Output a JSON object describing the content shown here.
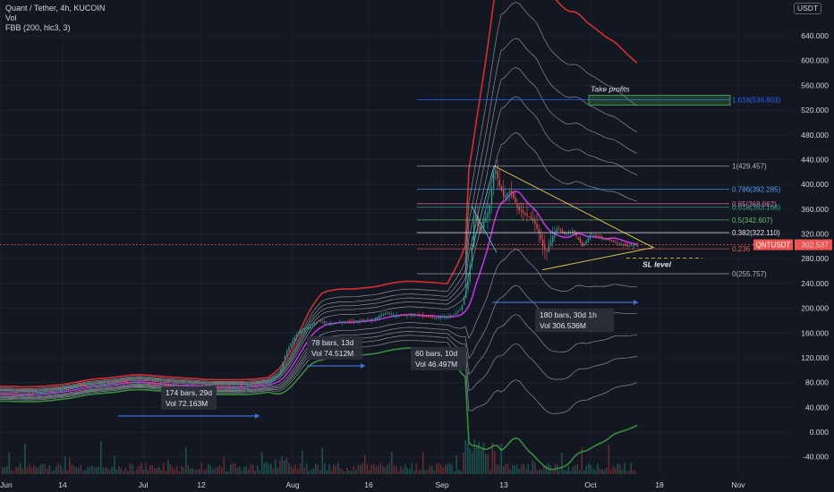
{
  "header": {
    "symbol_line": "Quant / Tether, 4h, KUCOIN",
    "indicator_vol": "Vol",
    "indicator_fbb": "FBB (200, hlc3, 3)",
    "currency": "USDT"
  },
  "colors": {
    "background": "#131722",
    "upper_band": "#d32f2f",
    "lower_band": "#388e3c",
    "basis": "#c033e0",
    "inner_bands": "#b2b5be",
    "triangle": "#e8d44d",
    "measure": "#3f6fd8",
    "up_candle": "#26a69a",
    "down_candle": "#ef5350"
  },
  "chart_data": {
    "type": "candlestick",
    "title": "Quant / Tether, 4h, KUCOIN",
    "ylabel": "USDT",
    "ylim": [
      -60,
      680
    ],
    "y_ticks": [
      "640.000",
      "600.000",
      "560.000",
      "520.000",
      "480.000",
      "440.000",
      "400.000",
      "360.000",
      "320.000",
      "280.000",
      "240.000",
      "200.000",
      "160.000",
      "120.000",
      "80.000",
      "40.000",
      "0.000",
      "-40.000"
    ],
    "x_ticks": [
      "Jun",
      "14",
      "Jul",
      "12",
      "Aug",
      "16",
      "Sep",
      "13",
      "Oct",
      "18",
      "Nov"
    ],
    "last_price": {
      "symbol": "QNTUSDT",
      "value": "302.537"
    },
    "fib_levels": [
      {
        "ratio": "1.618",
        "value": 536.803,
        "label": "1.618(536.803)",
        "color": "#2962ff"
      },
      {
        "ratio": "1",
        "value": 429.457,
        "label": "1(429.457)",
        "color": "#b2b5be"
      },
      {
        "ratio": "0.786",
        "value": 392.285,
        "label": "0.786(392.285)",
        "color": "#5b9cf6"
      },
      {
        "ratio": "0.65",
        "value": 368.662,
        "label": "0.65(368.662)",
        "color": "#f06292"
      },
      {
        "ratio": "0.618",
        "value": 363.168,
        "label": "0.618(363.168)",
        "color": "#26a69a"
      },
      {
        "ratio": "0.5",
        "value": 342.607,
        "label": "0.5(342.607)",
        "color": "#66bb6a"
      },
      {
        "ratio": "0.382",
        "value": 322.11,
        "label": "0.382(322.110)",
        "color": "#e0e3eb"
      },
      {
        "ratio": "0.236",
        "value": 296.0,
        "label": "0.236",
        "color": "#ef5350"
      },
      {
        "ratio": "0",
        "value": 255.757,
        "label": "0(255.757)",
        "color": "#b2b5be"
      }
    ],
    "annotations": [
      {
        "text": "Take profits",
        "kind": "target"
      },
      {
        "text": "SL level",
        "kind": "stop"
      }
    ],
    "measurements": [
      {
        "bars": "174 bars, 29d",
        "vol": "Vol 72.163M"
      },
      {
        "bars": "78 bars, 13d",
        "vol": "Vol 74.512M"
      },
      {
        "bars": "60 bars, 10d",
        "vol": "Vol 46.497M"
      },
      {
        "bars": "180 bars, 30d 1h",
        "vol": "Vol 306.536M"
      }
    ],
    "price_path": [
      [
        0,
        62
      ],
      [
        20,
        60
      ],
      [
        40,
        63
      ],
      [
        60,
        65
      ],
      [
        75,
        70
      ],
      [
        90,
        75
      ],
      [
        105,
        74
      ],
      [
        120,
        78
      ],
      [
        135,
        82
      ],
      [
        150,
        80
      ],
      [
        165,
        78
      ],
      [
        180,
        76
      ],
      [
        200,
        75
      ],
      [
        220,
        72
      ],
      [
        240,
        73
      ],
      [
        260,
        72
      ],
      [
        280,
        75
      ],
      [
        300,
        80
      ],
      [
        312,
        95
      ],
      [
        318,
        125
      ],
      [
        325,
        145
      ],
      [
        335,
        165
      ],
      [
        345,
        170
      ],
      [
        355,
        180
      ],
      [
        370,
        175
      ],
      [
        385,
        178
      ],
      [
        400,
        180
      ],
      [
        415,
        182
      ],
      [
        430,
        192
      ],
      [
        445,
        188
      ],
      [
        460,
        190
      ],
      [
        475,
        186
      ],
      [
        490,
        185
      ],
      [
        505,
        188
      ],
      [
        515,
        200
      ],
      [
        522,
        240
      ],
      [
        527,
        300
      ],
      [
        530,
        360
      ],
      [
        535,
        320
      ],
      [
        540,
        340
      ],
      [
        546,
        360
      ],
      [
        552,
        430
      ],
      [
        557,
        400
      ],
      [
        562,
        380
      ],
      [
        570,
        390
      ],
      [
        578,
        360
      ],
      [
        588,
        350
      ],
      [
        596,
        340
      ],
      [
        602,
        320
      ],
      [
        606,
        300
      ],
      [
        610,
        290
      ],
      [
        615,
        310
      ],
      [
        622,
        330
      ],
      [
        630,
        320
      ],
      [
        640,
        325
      ],
      [
        650,
        300
      ],
      [
        660,
        320
      ],
      [
        670,
        315
      ],
      [
        680,
        310
      ],
      [
        690,
        305
      ],
      [
        700,
        300
      ],
      [
        708,
        302
      ]
    ]
  }
}
